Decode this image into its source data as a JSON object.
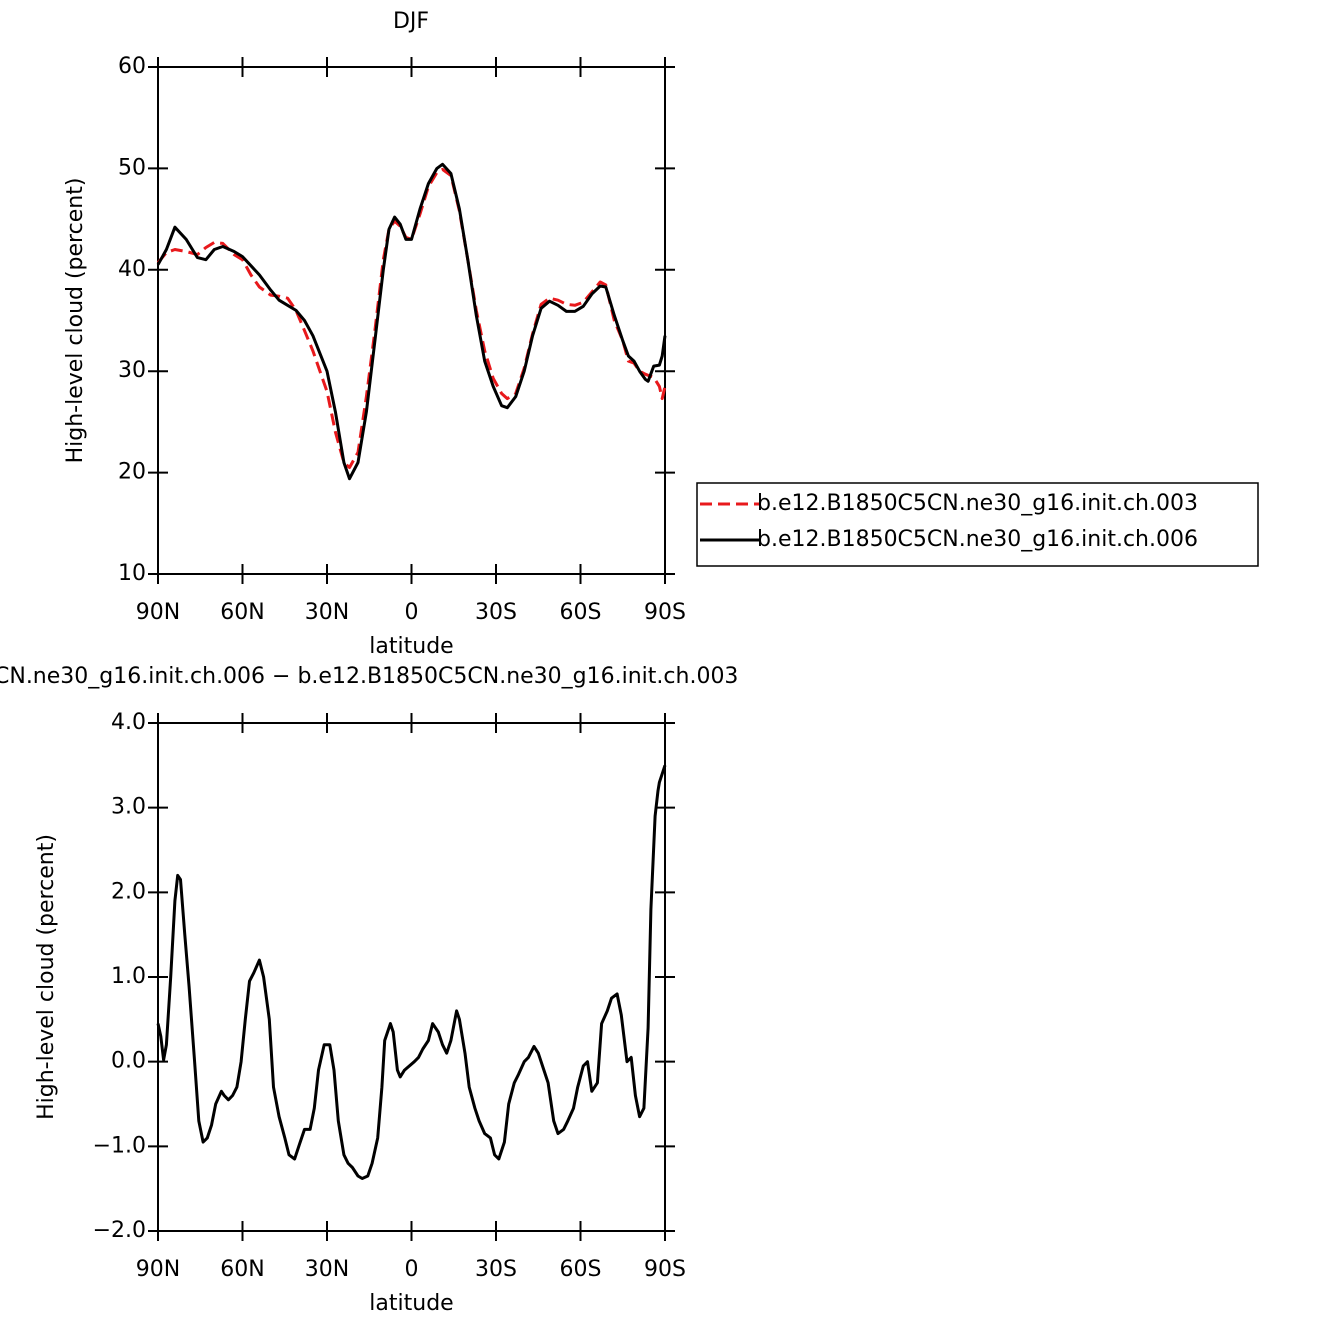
{
  "chart_data": [
    {
      "type": "line",
      "title": "DJF",
      "xlabel": "latitude",
      "ylabel": "High-level cloud (percent)",
      "x": [
        90,
        87,
        84,
        80,
        76,
        73,
        70,
        67,
        63,
        60,
        57,
        54,
        50,
        47,
        44,
        41,
        38,
        35,
        30,
        27,
        24,
        22,
        19,
        16,
        13,
        10,
        8,
        6,
        4,
        2,
        0,
        -3,
        -6,
        -9,
        -11,
        -14,
        -17,
        -20,
        -23,
        -26,
        -29,
        -32,
        -34,
        -37,
        -40,
        -43,
        -46,
        -49,
        -52,
        -55,
        -58,
        -61,
        -64,
        -67,
        -69,
        -72,
        -75,
        -77,
        -79,
        -81,
        -83,
        -84,
        -86,
        -88,
        -89,
        -90
      ],
      "series": [
        {
          "name": "b.e12.B1850C5CN.ne30_g16.init.ch.003",
          "color": "#e8191c",
          "dash": "dashed",
          "values": [
            40.7,
            41.7,
            42,
            41.8,
            41.5,
            42.2,
            42.7,
            42.6,
            41.5,
            41,
            39.5,
            38.3,
            37.5,
            37.4,
            37.2,
            36,
            34,
            32,
            28,
            24,
            21,
            20.5,
            22,
            27.5,
            34,
            41,
            44,
            44.8,
            44.3,
            43.2,
            43,
            45.5,
            48.2,
            49.6,
            49.9,
            49.3,
            45.8,
            41,
            36,
            32,
            29.3,
            27.8,
            27.3,
            27.8,
            30.3,
            33.7,
            36.6,
            37.2,
            37,
            36.6,
            36.5,
            36.8,
            37.8,
            38.8,
            38.5,
            35,
            33,
            31,
            30.8,
            30,
            29.7,
            29.6,
            29.4,
            28.5,
            27.3,
            28.5
          ]
        },
        {
          "name": "b.e12.B1850C5CN.ne30_g16.init.ch.006",
          "color": "#000000",
          "dash": "solid",
          "values": [
            40.5,
            42,
            44.2,
            43,
            41.2,
            41,
            42,
            42.3,
            41.8,
            41.3,
            40.4,
            39.5,
            38,
            37,
            36.5,
            36,
            35,
            33.5,
            30,
            26,
            21,
            19.4,
            21,
            26,
            33,
            40,
            44,
            45.2,
            44.5,
            43,
            43,
            46,
            48.5,
            50,
            50.4,
            49.5,
            46,
            41,
            35.5,
            31,
            28.5,
            26.6,
            26.4,
            27.5,
            30,
            33.5,
            36.2,
            36.9,
            36.5,
            35.9,
            35.9,
            36.4,
            37.6,
            38.4,
            38.3,
            35.5,
            33,
            31.5,
            31,
            30,
            29.2,
            29,
            30.5,
            30.6,
            31.5,
            33.5
          ]
        }
      ],
      "xlim": [
        90,
        -90
      ],
      "xticks": [
        {
          "value": 90,
          "label": "90N"
        },
        {
          "value": 60,
          "label": "60N"
        },
        {
          "value": 30,
          "label": "30N"
        },
        0,
        {
          "value": -30,
          "label": "30S"
        },
        {
          "value": -60,
          "label": "60S"
        },
        {
          "value": -90,
          "label": "90S"
        }
      ],
      "ylim": [
        10,
        60
      ],
      "yticks": [
        10,
        20,
        30,
        40,
        50,
        60
      ],
      "legend": "right"
    },
    {
      "type": "line",
      "title": "CN.ne30_g16.init.ch.006 − b.e12.B1850C5CN.ne30_g16.init.ch.003",
      "xlabel": "latitude",
      "ylabel": "High-level cloud (percent)",
      "x": [
        90,
        89,
        88,
        87,
        85.5,
        84,
        83,
        82,
        80.5,
        79,
        77,
        75.5,
        74,
        72.5,
        71,
        69.5,
        67.5,
        66.5,
        65,
        63.5,
        62,
        60.5,
        59,
        57.5,
        56,
        54,
        52.5,
        50.5,
        49,
        47,
        45,
        43.5,
        41.5,
        39.5,
        38,
        36,
        34.5,
        33,
        31,
        29,
        27.5,
        26,
        24,
        22.5,
        21,
        19,
        17.5,
        15.5,
        14,
        12,
        10.5,
        9.5,
        7.5,
        6.5,
        5,
        4,
        2.5,
        -1,
        -2.5,
        -4,
        -6,
        -7.5,
        -9.5,
        -11,
        -12.5,
        -14,
        -16,
        -17,
        -19,
        -20.5,
        -22.5,
        -24,
        -26,
        -28,
        -29.5,
        -31,
        -33,
        -34.5,
        -36.5,
        -38,
        -40,
        -41.5,
        -43.5,
        -45,
        -47,
        -48.5,
        -50.5,
        -52,
        -54,
        -55.5,
        -57.5,
        -59,
        -61,
        -62.5,
        -64,
        -66,
        -67.5,
        -69.5,
        -71,
        -73,
        -74.5,
        -76.5,
        -78,
        -79.5,
        -81,
        -82.5,
        -84,
        -85,
        -86.5,
        -87.5,
        -88,
        -90
      ],
      "values": [
        0.45,
        0.3,
        0.02,
        0.2,
        1,
        1.9,
        2.2,
        2.15,
        1.5,
        0.9,
        0,
        -0.7,
        -0.95,
        -0.9,
        -0.75,
        -0.5,
        -0.35,
        -0.4,
        -0.45,
        -0.4,
        -0.3,
        0,
        0.5,
        0.95,
        1.05,
        1.2,
        1,
        0.5,
        -0.3,
        -0.65,
        -0.9,
        -1.1,
        -1.15,
        -0.95,
        -0.8,
        -0.8,
        -0.55,
        -0.1,
        0.2,
        0.2,
        -0.1,
        -0.7,
        -1.1,
        -1.2,
        -1.25,
        -1.35,
        -1.38,
        -1.35,
        -1.2,
        -0.9,
        -0.3,
        0.25,
        0.45,
        0.35,
        -0.1,
        -0.18,
        -0.1,
        0,
        0.05,
        0.15,
        0.25,
        0.45,
        0.35,
        0.2,
        0.1,
        0.25,
        0.6,
        0.5,
        0.1,
        -0.3,
        -0.55,
        -0.7,
        -0.85,
        -0.9,
        -1.1,
        -1.15,
        -0.95,
        -0.5,
        -0.25,
        -0.15,
        0,
        0.05,
        0.18,
        0.1,
        -0.1,
        -0.25,
        -0.7,
        -0.85,
        -0.8,
        -0.7,
        -0.55,
        -0.3,
        -0.05,
        0,
        -0.35,
        -0.25,
        0.45,
        0.6,
        0.75,
        0.8,
        0.55,
        0,
        0.05,
        -0.4,
        -0.65,
        -0.55,
        0.4,
        1.8,
        2.9,
        3.2,
        3.3,
        3.5
      ],
      "color": "#000000",
      "xlim": [
        90,
        -90
      ],
      "xticks": [
        {
          "value": 90,
          "label": "90N"
        },
        {
          "value": 60,
          "label": "60N"
        },
        {
          "value": 30,
          "label": "30N"
        },
        0,
        {
          "value": -30,
          "label": "30S"
        },
        {
          "value": -60,
          "label": "60S"
        },
        {
          "value": -90,
          "label": "90S"
        }
      ],
      "ylim": [
        -2,
        4
      ],
      "yticks": [
        {
          "value": -2,
          "label": "−2.0"
        },
        {
          "value": -1,
          "label": "−1.0"
        },
        {
          "value": 0,
          "label": "0.0"
        },
        {
          "value": 1,
          "label": "1.0"
        },
        {
          "value": 2,
          "label": "2.0"
        },
        {
          "value": 3,
          "label": "3.0"
        },
        {
          "value": 4,
          "label": "4.0"
        }
      ]
    }
  ]
}
